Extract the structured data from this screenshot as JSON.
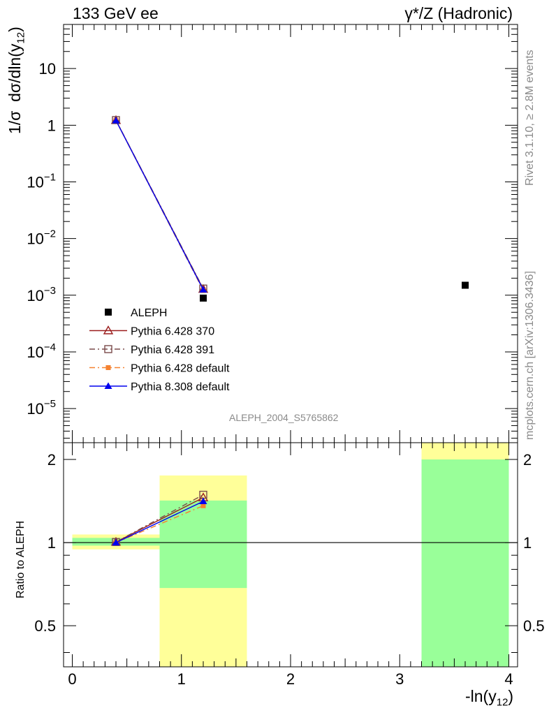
{
  "header": {
    "left_title": "133 GeV ee",
    "right_title": "γ*/Z (Hadronic)"
  },
  "side_labels": {
    "rivet": "Rivet 3.1.10, ≥ 2.8M events",
    "mcplots": "mcplots.cern.ch [arXiv:1306.3436]"
  },
  "watermark": "ALEPH_2004_S5765862",
  "chart_data": [
    {
      "type": "scatter",
      "panel": "main",
      "ylabel": "1/σ  dσ/dln(y12)",
      "yscale": "log",
      "ylim": [
        2.5e-06,
        60
      ],
      "xlim": [
        -0.08,
        4.08
      ],
      "yticks": [
        "10",
        "1",
        "10^-1",
        "10^-2",
        "10^-3",
        "10^-4",
        "10^-5"
      ],
      "legend_position": "bottom-left",
      "series": [
        {
          "name": "ALEPH",
          "color": "#000000",
          "marker": "filled-square",
          "line": "none",
          "points": [
            {
              "x": 1.2,
              "y": 0.00089
            },
            {
              "x": 3.6,
              "y": 0.0015
            }
          ]
        },
        {
          "name": "Pythia 6.428 370",
          "color": "#9b1c1c",
          "marker": "open-triangle",
          "line": "solid",
          "points": [
            {
              "x": 0.4,
              "y": 1.22
            },
            {
              "x": 1.2,
              "y": 0.00128
            }
          ]
        },
        {
          "name": "Pythia 6.428 391",
          "color": "#7a4b4b",
          "marker": "open-square",
          "line": "dash-dot",
          "points": [
            {
              "x": 0.4,
              "y": 1.23
            },
            {
              "x": 1.2,
              "y": 0.00131
            }
          ]
        },
        {
          "name": "Pythia 6.428 default",
          "color": "#f58231",
          "marker": "filled-square-small",
          "line": "dash-dot",
          "points": [
            {
              "x": 0.4,
              "y": 1.21
            },
            {
              "x": 1.2,
              "y": 0.00121
            }
          ]
        },
        {
          "name": "Pythia 8.308 default",
          "color": "#0000ee",
          "marker": "filled-triangle",
          "line": "solid",
          "points": [
            {
              "x": 0.4,
              "y": 1.21
            },
            {
              "x": 1.2,
              "y": 0.00125
            }
          ]
        }
      ]
    },
    {
      "type": "line",
      "panel": "ratio",
      "ylabel": "Ratio to ALEPH",
      "xlabel": "-ln(y12)",
      "yscale": "log",
      "ylim": [
        0.355,
        2.3
      ],
      "xlim": [
        -0.08,
        4.08
      ],
      "yticks": [
        "0.5",
        "1",
        "2"
      ],
      "xticks": [
        "0",
        "1",
        "2",
        "3",
        "4"
      ],
      "bands": [
        {
          "x0": 0.0,
          "x1": 0.8,
          "yellow": [
            0.945,
            1.07
          ],
          "green": [
            0.975,
            1.04
          ]
        },
        {
          "x0": 0.8,
          "x1": 1.6,
          "yellow": [
            0.2,
            1.75
          ],
          "green": [
            0.685,
            1.42
          ]
        },
        {
          "x0": 3.2,
          "x1": 4.0,
          "yellow": [
            0.2,
            3.0
          ],
          "green": [
            0.2,
            2.0
          ]
        }
      ],
      "series": [
        {
          "name": "Pythia 6.428 370",
          "color": "#9b1c1c",
          "marker": "open-triangle",
          "line": "solid",
          "points": [
            {
              "x": 0.4,
              "y": 1.005
            },
            {
              "x": 1.2,
              "y": 1.455
            }
          ]
        },
        {
          "name": "Pythia 6.428 391",
          "color": "#7a4b4b",
          "marker": "open-square",
          "line": "dash-dot",
          "points": [
            {
              "x": 0.4,
              "y": 1.005
            },
            {
              "x": 1.2,
              "y": 1.49
            }
          ]
        },
        {
          "name": "Pythia 6.428 default",
          "color": "#f58231",
          "marker": "filled-square-small",
          "line": "dash-dot",
          "points": [
            {
              "x": 0.4,
              "y": 1.0
            },
            {
              "x": 1.2,
              "y": 1.36
            }
          ]
        },
        {
          "name": "Pythia 8.308 default",
          "color": "#0000ee",
          "marker": "filled-triangle",
          "line": "solid",
          "points": [
            {
              "x": 0.4,
              "y": 1.0
            },
            {
              "x": 1.2,
              "y": 1.41
            }
          ]
        }
      ]
    }
  ]
}
